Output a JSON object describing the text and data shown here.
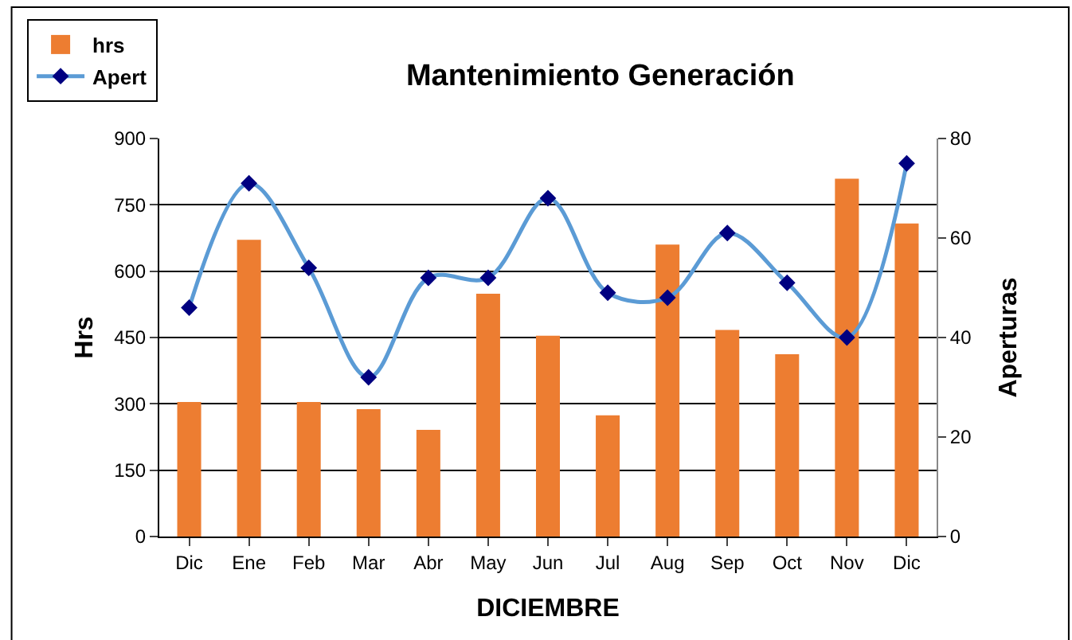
{
  "chart_data": {
    "type": "bar",
    "title": "Mantenimiento Generación",
    "xlabel": "DICIEMBRE",
    "ylabel": "Hrs",
    "y2label": "Aperturas",
    "categories": [
      "Dic",
      "Ene",
      "Feb",
      "Mar",
      "Abr",
      "May",
      "Jun",
      "Jul",
      "Aug",
      "Sep",
      "Oct",
      "Nov",
      "Dic"
    ],
    "series": [
      {
        "name": "hrs",
        "color": "#ed7d31",
        "values": [
          304,
          671,
          304,
          288,
          241,
          549,
          454,
          274,
          660,
          467,
          412,
          809,
          708
        ]
      },
      {
        "name": "Apert",
        "type": "line",
        "axis": "y2",
        "color": "#5b9bd5",
        "marker": "diamond",
        "values": [
          46,
          71,
          54,
          32,
          52,
          52,
          68,
          49,
          48,
          61,
          51,
          40,
          75
        ]
      }
    ],
    "ylim": [
      0,
      900
    ],
    "yticks": [
      0,
      150,
      300,
      450,
      600,
      750,
      900
    ],
    "y2lim": [
      0,
      80
    ],
    "y2ticks": [
      0,
      20,
      40,
      60,
      80
    ],
    "grid": "y",
    "legend": "top left"
  }
}
